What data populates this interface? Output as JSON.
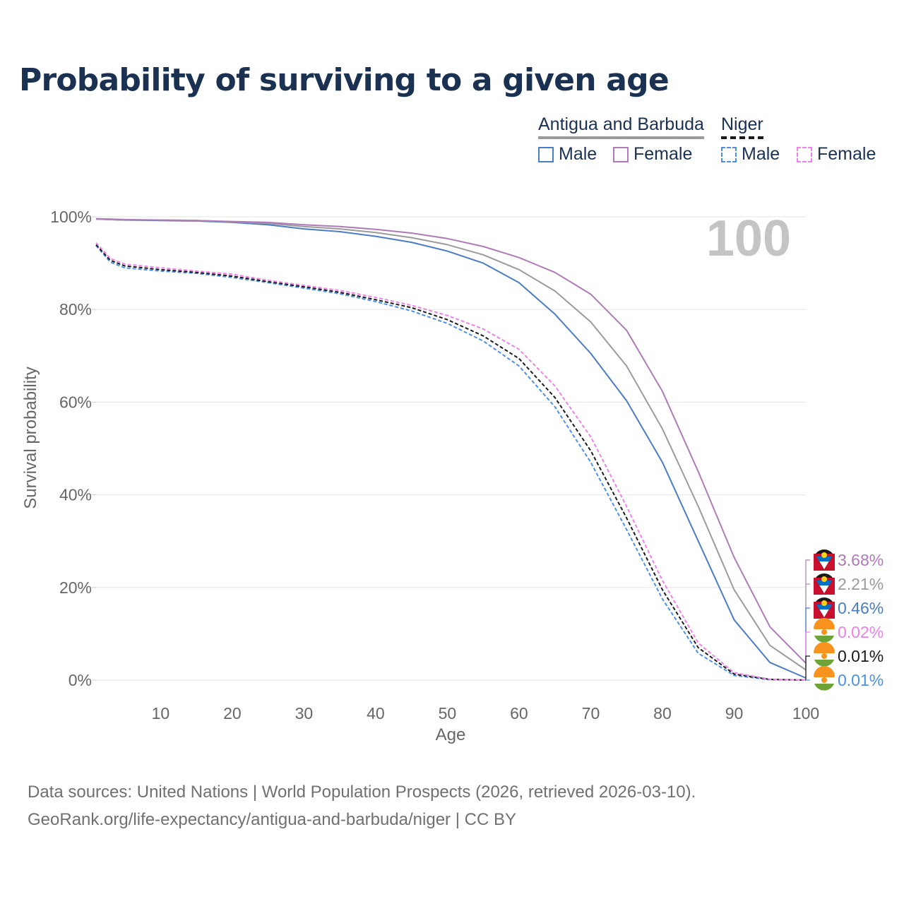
{
  "title": "Probability of surviving to a given age",
  "legend": {
    "groups": [
      {
        "name": "Antigua and Barbuda",
        "items": [
          {
            "label": "Male",
            "color": "#4a7cc7",
            "style": "solid"
          },
          {
            "label": "Female",
            "color": "#b07ab8",
            "style": "solid"
          }
        ]
      },
      {
        "name": "Niger",
        "items": [
          {
            "label": "Male",
            "color": "#4a90e8",
            "style": "dashed"
          },
          {
            "label": "Female",
            "color": "#f080e8",
            "style": "dashed"
          }
        ]
      }
    ]
  },
  "colors": {
    "ab_male": "#4a7cc7",
    "ab_female": "#b07ab8",
    "ab_total": "#9b9b9b",
    "ne_male": "#4a90e8",
    "ne_female": "#f080e8",
    "ne_total": "#1a1a1a",
    "title": "#1a3152",
    "axis_text": "#666666"
  },
  "chart_data": {
    "type": "line",
    "title": "Probability of surviving to a given age",
    "xlabel": "Age",
    "ylabel": "Survival probability",
    "xlim": [
      1,
      100
    ],
    "ylim": [
      0,
      100
    ],
    "xticks": [
      10,
      20,
      30,
      40,
      50,
      60,
      70,
      80,
      90,
      100
    ],
    "xtick_labels": [
      "10",
      "20",
      "30",
      "40",
      "50",
      "60",
      "70",
      "80",
      "90",
      "100"
    ],
    "yticks": [
      0,
      20,
      40,
      60,
      80,
      100
    ],
    "ytick_labels": [
      "0%",
      "20%",
      "40%",
      "60%",
      "80%",
      "100%"
    ],
    "grid": true,
    "age_marker": "100",
    "series": [
      {
        "key": "ab_male",
        "name": "Antigua and Barbuda Male",
        "style": "solid",
        "x": [
          1,
          5,
          10,
          15,
          20,
          25,
          30,
          35,
          40,
          45,
          50,
          55,
          60,
          65,
          70,
          75,
          80,
          85,
          90,
          95,
          100
        ],
        "values": [
          99.5,
          99.3,
          99.2,
          99.1,
          98.8,
          98.3,
          97.4,
          96.8,
          95.8,
          94.5,
          92.6,
          90.0,
          85.8,
          79.0,
          70.5,
          60.3,
          47.0,
          30.0,
          13.0,
          3.8,
          0.46
        ],
        "end_label": "0.46%",
        "flag": "antigua"
      },
      {
        "key": "ab_total",
        "name": "Antigua and Barbuda",
        "style": "solid",
        "x": [
          1,
          5,
          10,
          15,
          20,
          25,
          30,
          35,
          40,
          45,
          50,
          55,
          60,
          65,
          70,
          75,
          80,
          85,
          90,
          95,
          100
        ],
        "values": [
          99.5,
          99.3,
          99.3,
          99.2,
          98.9,
          98.6,
          97.9,
          97.4,
          96.6,
          95.5,
          94.0,
          91.8,
          88.6,
          84.0,
          77.3,
          67.8,
          54.2,
          37.5,
          19.5,
          7.5,
          2.21
        ],
        "end_label": "2.21%",
        "flag": "antigua"
      },
      {
        "key": "ab_female",
        "name": "Antigua and Barbuda Female",
        "style": "solid",
        "x": [
          1,
          5,
          10,
          15,
          20,
          25,
          30,
          35,
          40,
          45,
          50,
          55,
          60,
          65,
          70,
          75,
          80,
          85,
          90,
          95,
          100
        ],
        "values": [
          99.6,
          99.4,
          99.3,
          99.2,
          99.0,
          98.8,
          98.3,
          97.9,
          97.3,
          96.5,
          95.3,
          93.6,
          91.2,
          88.0,
          83.3,
          75.5,
          62.3,
          45.0,
          26.5,
          11.5,
          3.68
        ],
        "end_label": "3.68%",
        "flag": "antigua"
      },
      {
        "key": "ne_male",
        "name": "Niger Male",
        "style": "dashed",
        "x": [
          1,
          3,
          5,
          10,
          15,
          20,
          25,
          30,
          35,
          40,
          45,
          50,
          55,
          60,
          65,
          70,
          75,
          80,
          85,
          90,
          95,
          100
        ],
        "values": [
          93.8,
          90.2,
          89.0,
          88.3,
          87.8,
          86.9,
          85.8,
          84.6,
          83.4,
          81.7,
          79.7,
          77.0,
          73.2,
          67.8,
          59.0,
          47.0,
          32.5,
          17.5,
          5.8,
          1.0,
          0.1,
          0.01
        ],
        "end_label": "0.01%",
        "flag": "niger"
      },
      {
        "key": "ne_total",
        "name": "Niger",
        "style": "dashed",
        "x": [
          1,
          3,
          5,
          10,
          15,
          20,
          25,
          30,
          35,
          40,
          45,
          50,
          55,
          60,
          65,
          70,
          75,
          80,
          85,
          90,
          95,
          100
        ],
        "values": [
          94.0,
          90.6,
          89.4,
          88.6,
          88.0,
          87.2,
          86.0,
          84.9,
          83.7,
          82.1,
          80.4,
          77.8,
          74.3,
          69.4,
          61.0,
          49.5,
          35.0,
          19.5,
          7.0,
          1.3,
          0.15,
          0.01
        ],
        "end_label": "0.01%",
        "flag": "niger"
      },
      {
        "key": "ne_female",
        "name": "Niger Female",
        "style": "dashed",
        "x": [
          1,
          3,
          5,
          10,
          15,
          20,
          25,
          30,
          35,
          40,
          45,
          50,
          55,
          60,
          65,
          70,
          75,
          80,
          85,
          90,
          95,
          100
        ],
        "values": [
          94.4,
          91.0,
          89.8,
          89.0,
          88.3,
          87.6,
          86.3,
          85.2,
          84.1,
          82.6,
          80.9,
          78.7,
          75.8,
          71.4,
          63.5,
          52.5,
          37.5,
          21.5,
          8.0,
          1.6,
          0.2,
          0.02
        ],
        "end_label": "0.02%",
        "flag": "niger"
      }
    ]
  },
  "footer": {
    "source": "Data sources: United Nations | World Population Prospects (2026, retrieved 2026-03-10).",
    "url": "GeoRank.org/life-expectancy/antigua-and-barbuda/niger | CC BY"
  }
}
